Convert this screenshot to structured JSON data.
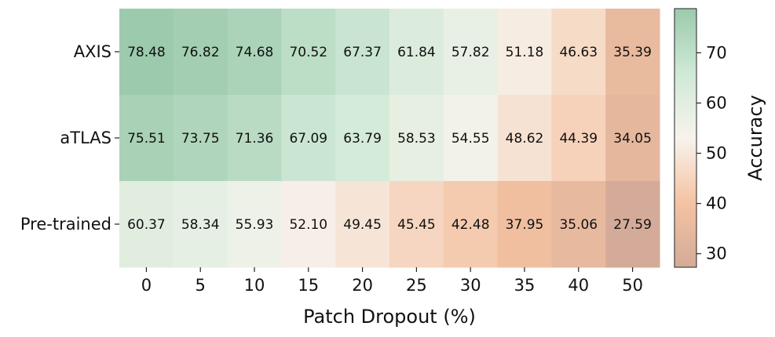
{
  "chart_data": {
    "type": "heatmap",
    "title": "",
    "xlabel": "Patch Dropout (%)",
    "ylabel": "",
    "x_categories": [
      "0",
      "5",
      "10",
      "15",
      "20",
      "25",
      "30",
      "35",
      "40",
      "50"
    ],
    "y_categories": [
      "AXIS",
      "aTLAS",
      "Pre-trained"
    ],
    "values": [
      [
        78.48,
        76.82,
        74.68,
        70.52,
        67.37,
        61.84,
        57.82,
        51.18,
        46.63,
        35.39
      ],
      [
        75.51,
        73.75,
        71.36,
        67.09,
        63.79,
        58.53,
        54.55,
        48.62,
        44.39,
        34.05
      ],
      [
        60.37,
        58.34,
        55.93,
        52.1,
        49.45,
        45.45,
        42.48,
        37.95,
        35.06,
        27.59
      ]
    ],
    "colorbar": {
      "label": "Accuracy",
      "range": [
        27.59,
        78.48
      ],
      "ticks": [
        30,
        40,
        50,
        60,
        70
      ],
      "colors": {
        "low": "#d4ab98",
        "lower_mid": "#f5c3a2",
        "mid": "#f7f3ec",
        "upper_mid": "#cfe9d6",
        "high": "#9ccaac"
      }
    },
    "grid": false,
    "legend": "colorbar-right"
  }
}
